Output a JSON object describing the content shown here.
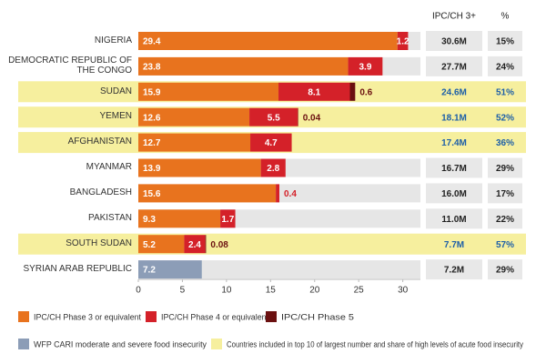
{
  "chart_data": {
    "type": "bar",
    "orientation": "horizontal",
    "stacked": true,
    "categories": [
      "NIGERIA",
      "DEMOCRATIC REPUBLIC OF THE CONGO",
      "SUDAN",
      "YEMEN",
      "AFGHANISTAN",
      "MYANMAR",
      "BANGLADESH",
      "PAKISTAN",
      "SOUTH SUDAN",
      "SYRIAN ARAB REPUBLIC"
    ],
    "series": [
      {
        "name": "IPC/CH Phase 3 or equivalent",
        "color": "#e8731e",
        "values": [
          29.4,
          23.8,
          15.9,
          12.6,
          12.7,
          13.9,
          15.6,
          9.3,
          5.2,
          null
        ]
      },
      {
        "name": "IPC/CH Phase 4 or equivalent",
        "color": "#d42129",
        "values": [
          1.2,
          3.9,
          8.1,
          5.5,
          4.7,
          2.8,
          0.4,
          1.7,
          2.4,
          null
        ]
      },
      {
        "name": "IPC/CH Phase 5",
        "color": "#6b1010",
        "values": [
          null,
          null,
          0.6,
          0.04,
          null,
          null,
          null,
          null,
          0.08,
          null
        ]
      },
      {
        "name": "WFP CARI moderate and severe food insecurity",
        "color": "#8c9db7",
        "values": [
          null,
          null,
          null,
          null,
          null,
          null,
          null,
          null,
          null,
          7.2
        ]
      }
    ],
    "xlim": [
      0,
      32
    ],
    "xticks": [
      0,
      5,
      10,
      15,
      20,
      25,
      30
    ],
    "highlight": {
      "label": "Countries included in top 10 of largest number and share of high levels of acute food insecurity",
      "color": "#f6ef9e",
      "rows": [
        false,
        false,
        true,
        true,
        true,
        false,
        false,
        false,
        true,
        false
      ]
    },
    "table": {
      "columns": [
        "IPC/CH 3+",
        "%"
      ],
      "rows": [
        [
          "30.6M",
          "15%"
        ],
        [
          "27.7M",
          "24%"
        ],
        [
          "24.6M",
          "51%"
        ],
        [
          "18.1M",
          "52%"
        ],
        [
          "17.4M",
          "36%"
        ],
        [
          "16.7M",
          "29%"
        ],
        [
          "16.0M",
          "17%"
        ],
        [
          "11.0M",
          "22%"
        ],
        [
          "7.7M",
          "57%"
        ],
        [
          "7.2M",
          "29%"
        ]
      ]
    }
  }
}
